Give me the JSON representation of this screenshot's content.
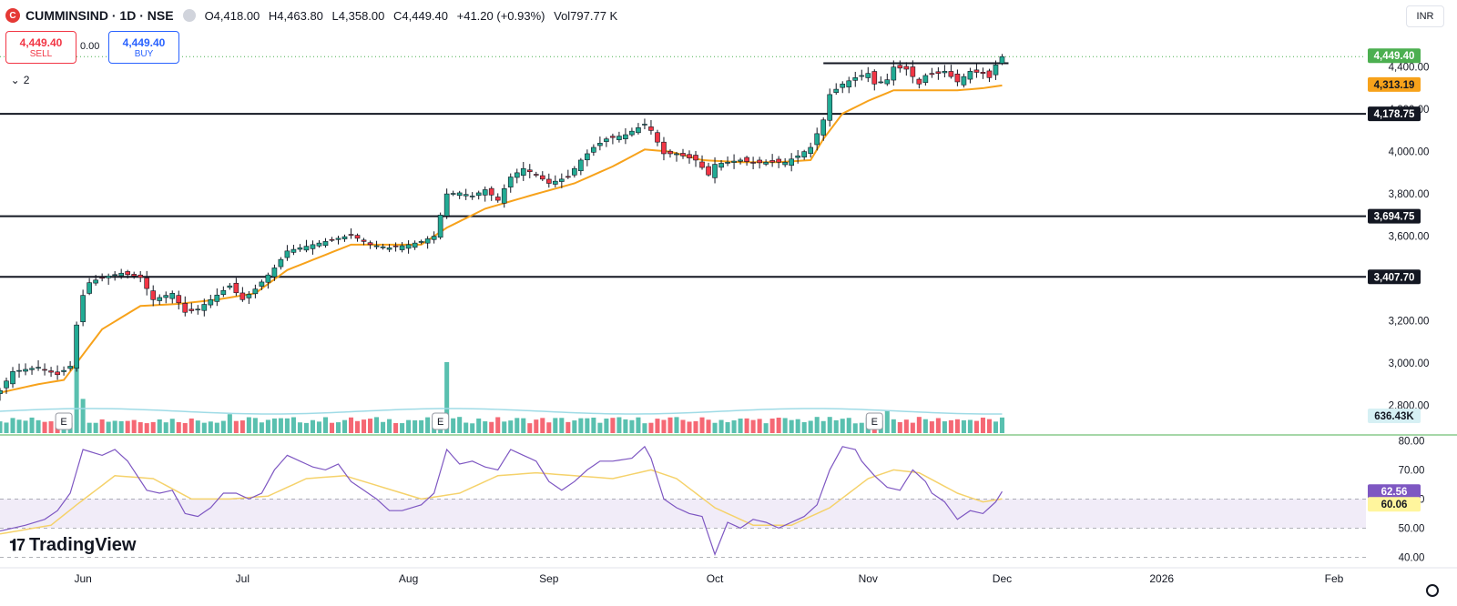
{
  "header": {
    "logo_letter": "C",
    "symbol": "CUMMINSIND · 1D · NSE",
    "open": "O4,418.00",
    "high": "H4,463.80",
    "low": "L4,358.00",
    "close": "C4,449.40",
    "change": "+41.20 (+0.93%)",
    "volume": "Vol797.77 K"
  },
  "trade": {
    "sell_price": "4,449.40",
    "sell_label": "SELL",
    "buy_price": "4,449.40",
    "buy_label": "BUY",
    "spread": "0.00"
  },
  "indicators_collapsed": "2",
  "currency": "INR",
  "brand": "TradingView",
  "colors": {
    "up": "#22ab94",
    "down": "#f23645",
    "ema": "#f7a21b",
    "rsi": "#7e57c2",
    "rsi_ma": "#f5d26b",
    "vol_ma": "#9fdbe6",
    "price_tag": "#4caf50",
    "ema_tag": "#f7a21b",
    "rsi_tag": "#7e57c2",
    "rsi_ma_tag": "#fff59d",
    "volume_tag": "#d6f0f4"
  },
  "chart_data": {
    "type": "candlestick",
    "price_ticks": [
      4400,
      4200,
      4000,
      3800,
      3600,
      3200,
      3000,
      2800
    ],
    "price_tick_labels": [
      "4,400.00",
      "4,200.00",
      "4,000.00",
      "3,800.00",
      "3,600.00",
      "3,200.00",
      "3,000.00",
      "2,800.00"
    ],
    "ylim": [
      2660,
      4545
    ],
    "horizontal_levels": [
      {
        "value": 4178.75,
        "label": "4,178.75"
      },
      {
        "value": 3694.75,
        "label": "3,694.75"
      },
      {
        "value": 3407.7,
        "label": "3,407.70"
      }
    ],
    "resistance_line": {
      "from_day": 129,
      "to_day": 158,
      "value": 4418
    },
    "last_price": {
      "value": 4449.4,
      "label": "4,449.40"
    },
    "ema_value": {
      "value": 4313.19,
      "label": "4,313.19"
    },
    "volume_value": {
      "label": "636.43K"
    },
    "earnings_marker": "E",
    "earnings_days": [
      10,
      69,
      137
    ],
    "time_labels": [
      {
        "day": 13,
        "label": "Jun"
      },
      {
        "day": 38,
        "label": "Jul"
      },
      {
        "day": 64,
        "label": "Aug"
      },
      {
        "day": 86,
        "label": "Sep"
      },
      {
        "day": 112,
        "label": "Oct"
      },
      {
        "day": 136,
        "label": "Nov"
      },
      {
        "day": 157,
        "label": "Dec"
      },
      {
        "day": 182,
        "label": "2026"
      },
      {
        "day": 209,
        "label": "Feb"
      }
    ],
    "day_range": [
      0,
      214
    ],
    "close_anchors": [
      [
        0,
        2870
      ],
      [
        2,
        2960
      ],
      [
        6,
        2980
      ],
      [
        9,
        2945
      ],
      [
        11,
        2985
      ],
      [
        12,
        3180
      ],
      [
        13,
        3320
      ],
      [
        14,
        3380
      ],
      [
        16,
        3405
      ],
      [
        19,
        3425
      ],
      [
        22,
        3405
      ],
      [
        24,
        3300
      ],
      [
        27,
        3330
      ],
      [
        29,
        3240
      ],
      [
        31,
        3255
      ],
      [
        33,
        3300
      ],
      [
        36,
        3365
      ],
      [
        38,
        3300
      ],
      [
        40,
        3350
      ],
      [
        43,
        3450
      ],
      [
        45,
        3530
      ],
      [
        49,
        3560
      ],
      [
        53,
        3590
      ],
      [
        55,
        3605
      ],
      [
        58,
        3560
      ],
      [
        61,
        3545
      ],
      [
        64,
        3560
      ],
      [
        66,
        3575
      ],
      [
        68,
        3600
      ],
      [
        70,
        3800
      ],
      [
        72,
        3805
      ],
      [
        74,
        3790
      ],
      [
        76,
        3820
      ],
      [
        78,
        3770
      ],
      [
        80,
        3880
      ],
      [
        82,
        3920
      ],
      [
        84,
        3890
      ],
      [
        86,
        3850
      ],
      [
        89,
        3880
      ],
      [
        91,
        3960
      ],
      [
        93,
        4020
      ],
      [
        95,
        4060
      ],
      [
        98,
        4080
      ],
      [
        101,
        4130
      ],
      [
        102,
        4100
      ],
      [
        104,
        3990
      ],
      [
        106,
        3990
      ],
      [
        109,
        3960
      ],
      [
        111,
        3890
      ],
      [
        112,
        3940
      ],
      [
        114,
        3950
      ],
      [
        116,
        3960
      ],
      [
        118,
        3945
      ],
      [
        120,
        3950
      ],
      [
        123,
        3950
      ],
      [
        125,
        3980
      ],
      [
        127,
        4020
      ],
      [
        129,
        4150
      ],
      [
        130,
        4270
      ],
      [
        132,
        4320
      ],
      [
        134,
        4350
      ],
      [
        136,
        4370
      ],
      [
        137,
        4320
      ],
      [
        139,
        4340
      ],
      [
        140,
        4400
      ],
      [
        142,
        4390
      ],
      [
        144,
        4320
      ],
      [
        145,
        4360
      ],
      [
        147,
        4370
      ],
      [
        148,
        4380
      ],
      [
        150,
        4330
      ],
      [
        152,
        4380
      ],
      [
        154,
        4370
      ],
      [
        155,
        4350
      ],
      [
        156,
        4410
      ],
      [
        157,
        4449.4
      ]
    ],
    "ema_anchors": [
      [
        0,
        2860
      ],
      [
        6,
        2900
      ],
      [
        10,
        2920
      ],
      [
        13,
        3040
      ],
      [
        16,
        3160
      ],
      [
        22,
        3270
      ],
      [
        28,
        3280
      ],
      [
        34,
        3300
      ],
      [
        40,
        3330
      ],
      [
        45,
        3440
      ],
      [
        50,
        3500
      ],
      [
        55,
        3560
      ],
      [
        62,
        3560
      ],
      [
        66,
        3560
      ],
      [
        70,
        3640
      ],
      [
        76,
        3730
      ],
      [
        84,
        3800
      ],
      [
        90,
        3850
      ],
      [
        96,
        3930
      ],
      [
        101,
        4010
      ],
      [
        105,
        4000
      ],
      [
        110,
        3960
      ],
      [
        116,
        3950
      ],
      [
        122,
        3950
      ],
      [
        127,
        3960
      ],
      [
        129,
        4060
      ],
      [
        132,
        4180
      ],
      [
        136,
        4240
      ],
      [
        140,
        4290
      ],
      [
        145,
        4290
      ],
      [
        150,
        4290
      ],
      [
        154,
        4300
      ],
      [
        157,
        4313.19
      ]
    ],
    "volume_axis": "relative",
    "volume_spikes": [
      [
        12,
        1.0
      ],
      [
        13,
        0.6
      ],
      [
        70,
        1.0
      ],
      [
        36,
        0.3
      ],
      [
        139,
        0.37
      ],
      [
        151,
        0.18
      ],
      [
        150,
        0.2
      ],
      [
        148,
        0.16
      ]
    ],
    "rsi": {
      "ticks": [
        80,
        70,
        60,
        50,
        40
      ],
      "tick_labels": [
        "80.00",
        "70.00",
        "60.00",
        "50.00",
        "40.00"
      ],
      "ylim": [
        37,
        82
      ],
      "band": [
        50,
        60
      ],
      "value": {
        "value": 62.56,
        "label": "62.56"
      },
      "ma_value": {
        "value": 60.06,
        "label": "60.06"
      },
      "anchors": [
        [
          0,
          49
        ],
        [
          4,
          51
        ],
        [
          7,
          53
        ],
        [
          9,
          56
        ],
        [
          11,
          62
        ],
        [
          13,
          77
        ],
        [
          16,
          75
        ],
        [
          18,
          77
        ],
        [
          20,
          73
        ],
        [
          23,
          63
        ],
        [
          25,
          62
        ],
        [
          27,
          63
        ],
        [
          29,
          55
        ],
        [
          31,
          54
        ],
        [
          33,
          57
        ],
        [
          35,
          62
        ],
        [
          37,
          62
        ],
        [
          39,
          60
        ],
        [
          41,
          62
        ],
        [
          43,
          70
        ],
        [
          45,
          75
        ],
        [
          47,
          73
        ],
        [
          49,
          71
        ],
        [
          51,
          70
        ],
        [
          53,
          72
        ],
        [
          55,
          66
        ],
        [
          57,
          63
        ],
        [
          59,
          60
        ],
        [
          61,
          56
        ],
        [
          63,
          56
        ],
        [
          66,
          58
        ],
        [
          68,
          62
        ],
        [
          70,
          77
        ],
        [
          72,
          72
        ],
        [
          74,
          73
        ],
        [
          76,
          71
        ],
        [
          78,
          70
        ],
        [
          80,
          77
        ],
        [
          82,
          75
        ],
        [
          84,
          73
        ],
        [
          86,
          66
        ],
        [
          88,
          63
        ],
        [
          90,
          66
        ],
        [
          92,
          70
        ],
        [
          94,
          73
        ],
        [
          96,
          73
        ],
        [
          99,
          74
        ],
        [
          101,
          78
        ],
        [
          102,
          74
        ],
        [
          104,
          60
        ],
        [
          106,
          57
        ],
        [
          108,
          55
        ],
        [
          110,
          54
        ],
        [
          112,
          41
        ],
        [
          114,
          52
        ],
        [
          116,
          50
        ],
        [
          118,
          53
        ],
        [
          120,
          52
        ],
        [
          122,
          50
        ],
        [
          124,
          52
        ],
        [
          126,
          54
        ],
        [
          128,
          58
        ],
        [
          130,
          70
        ],
        [
          132,
          78
        ],
        [
          134,
          77
        ],
        [
          135,
          73
        ],
        [
          137,
          68
        ],
        [
          139,
          64
        ],
        [
          141,
          63
        ],
        [
          143,
          70
        ],
        [
          145,
          66
        ],
        [
          146,
          62
        ],
        [
          148,
          59
        ],
        [
          150,
          53
        ],
        [
          152,
          56
        ],
        [
          154,
          55
        ],
        [
          156,
          59
        ],
        [
          157,
          62.56
        ]
      ],
      "ma_anchors": [
        [
          0,
          48
        ],
        [
          8,
          51
        ],
        [
          12,
          58
        ],
        [
          18,
          68
        ],
        [
          24,
          67
        ],
        [
          30,
          60
        ],
        [
          36,
          60
        ],
        [
          42,
          61
        ],
        [
          48,
          67
        ],
        [
          54,
          68
        ],
        [
          60,
          64
        ],
        [
          66,
          60
        ],
        [
          72,
          62
        ],
        [
          78,
          68
        ],
        [
          84,
          69
        ],
        [
          90,
          68
        ],
        [
          96,
          67
        ],
        [
          102,
          70
        ],
        [
          106,
          67
        ],
        [
          112,
          57
        ],
        [
          118,
          51
        ],
        [
          124,
          51
        ],
        [
          130,
          57
        ],
        [
          136,
          67
        ],
        [
          140,
          70
        ],
        [
          144,
          69
        ],
        [
          150,
          62
        ],
        [
          154,
          59
        ],
        [
          157,
          60.06
        ]
      ]
    }
  }
}
